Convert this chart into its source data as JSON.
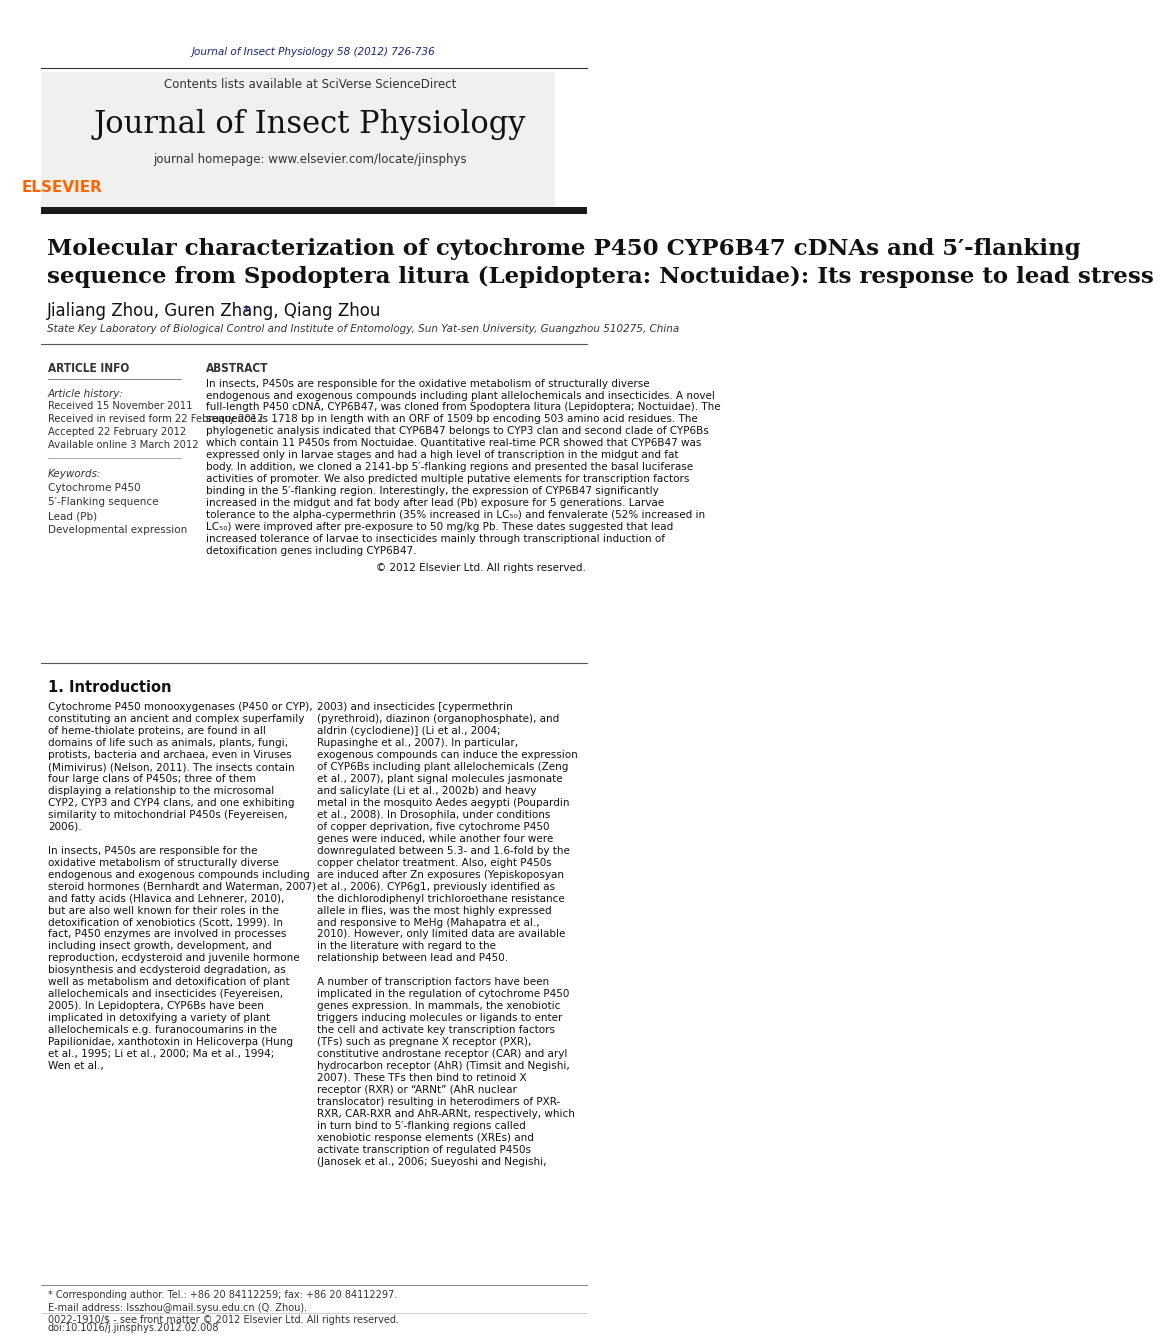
{
  "page_bg": "#ffffff",
  "header_citation": "Journal of Insect Physiology 58 (2012) 726-736",
  "header_citation_color": "#1a237e",
  "journal_name": "Journal of Insect Physiology",
  "journal_homepage": "journal homepage: www.elsevier.com/locate/jinsphys",
  "contents_line": "Contents lists available at SciVerse ScienceDirect",
  "article_title_line1": "Molecular characterization of cytochrome P450 CYP6B47 cDNAs and 5′-flanking",
  "article_title_line2": "sequence from Spodoptera litura (Lepidoptera: Noctuidae): Its response to lead stress",
  "authors": "Jialiang Zhou, Guren Zhang, Qiang Zhou*",
  "affiliation": "State Key Laboratory of Biological Control and Institute of Entomology, Sun Yat-sen University, Guangzhou 510275, China",
  "section_article_info": "ARTICLE INFO",
  "section_abstract": "ABSTRACT",
  "article_history_label": "Article history:",
  "article_history": [
    "Received 15 November 2011",
    "Received in revised form 22 February 2012",
    "Accepted 22 February 2012",
    "Available online 3 March 2012"
  ],
  "keywords_label": "Keywords:",
  "keywords": [
    "Cytochrome P450",
    "5′-Flanking sequence",
    "Lead (Pb)",
    "Developmental expression"
  ],
  "abstract_text": "In insects, P450s are responsible for the oxidative metabolism of structurally diverse endogenous and exogenous compounds including plant allelochemicals and insecticides. A novel full-length P450 cDNA, CYP6B47, was cloned from Spodoptera litura (Lepidoptera; Noctuidae). The sequence is 1718 bp in length with an ORF of 1509 bp encoding 503 amino acid residues. The phylogenetic analysis indicated that CYP6B47 belongs to CYP3 clan and second clade of CYP6Bs which contain 11 P450s from Noctuidae. Quantitative real-time PCR showed that CYP6B47 was expressed only in larvae stages and had a high level of transcription in the midgut and fat body. In addition, we cloned a 2141-bp 5′-flanking regions and presented the basal luciferase activities of promoter. We also predicted multiple putative elements for transcription factors binding in the 5′-flanking region. Interestingly, the expression of CYP6B47 significantly increased in the midgut and fat body after lead (Pb) exposure for 5 generations. Larvae tolerance to the alpha-cypermethrin (35% increased in LC₅₀) and fenvalerate (52% increased in LC₅₀) were improved after pre-exposure to 50 mg/kg Pb. These dates suggested that lead increased tolerance of larvae to insecticides mainly through transcriptional induction of detoxification genes including CYP6B47.\n© 2012 Elsevier Ltd. All rights reserved.",
  "intro_heading": "1. Introduction",
  "intro_col1": "Cytochrome P450 monooxygenases (P450 or CYP), constituting an ancient and complex superfamily of heme-thiolate proteins, are found in all domains of life such as animals, plants, fungi, protists, bacteria and archaea, even in Viruses (Mimivirus) (Nelson, 2011). The insects contain four large clans of P450s; three of them displaying a relationship to the microsomal CYP2, CYP3 and CYP4 clans, and one exhibiting similarity to mitochondrial P450s (Feyereisen, 2006).\n    In insects, P450s are responsible for the oxidative metabolism of structurally diverse endogenous and exogenous compounds including steroid hormones (Bernhardt and Waterman, 2007) and fatty acids (Hlavica and Lehnerer, 2010), but are also well known for their roles in the detoxification of xenobiotics (Scott, 1999). In fact, P450 enzymes are involved in processes including insect growth, development, and reproduction, ecdysteroid and juvenile hormone biosynthesis and ecdysteroid degradation, as well as metabolism and detoxification of plant allelochemicals and insecticides (Feyereisen, 2005). In Lepidoptera, CYP6Bs have been implicated in detoxifying a variety of plant allelochemicals e.g. furanocoumarins in the Papilionidae, xanthotoxin in Helicoverpa (Hung et al., 1995; Li et al., 2000; Ma et al., 1994; Wen et al.,",
  "intro_col2": "2003) and insecticides [cypermethrin (pyrethroid), diazinon (organophosphate), and aldrin (cyclodiene)] (Li et al., 2004; Rupasinghe et al., 2007). In particular, exogenous compounds can induce the expression of CYP6Bs including plant allelochemicals (Zeng et al., 2007), plant signal molecules jasmonate and salicylate (Li et al., 2002b) and heavy metal in the mosquito Aedes aegypti (Poupardin et al., 2008). In Drosophila, under conditions of copper deprivation, five cytochrome P450 genes were induced, while another four were downregulated between 5.3- and 1.6-fold by the copper chelator treatment. Also, eight P450s are induced after Zn exposures (Yepiskoposyan et al., 2006). CYP6g1, previously identified as the dichlorodiphenyl trichloroethane resistance allele in flies, was the most highly expressed and responsive to MeHg (Mahapatra et al., 2010). However, only limited data are available in the literature with regard to the relationship between lead and P450.\n    A number of transcription factors have been implicated in the regulation of cytochrome P450 genes expression. In mammals, the xenobiotic triggers inducing molecules or ligands to enter the cell and activate key transcription factors (TFs) such as pregnane X receptor (PXR), constitutive androstane receptor (CAR) and aryl hydrocarbon receptor (AhR) (Timsit and Negishi, 2007). These TFs then bind to retinoid X receptor (RXR) or “ARNt” (AhR nuclear translocator) resulting in heterodimers of PXR-RXR, CAR-RXR and AhR-ARNt, respectively, which in turn bind to 5′-flanking regions called xenobiotic response elements (XREs) and activate transcription of regulated P450s (Janosek et al., 2006; Sueyoshi and Negishi,",
  "footer_note": "* Corresponding author. Tel.: +86 20 84112259; fax: +86 20 84112297.",
  "footer_email": "E-mail address: lsszhou@mail.sysu.edu.cn (Q. Zhou).",
  "footer_issn": "0022-1910/$ - see front matter © 2012 Elsevier Ltd. All rights reserved.",
  "footer_doi": "doi:10.1016/j.jinsphys.2012.02.008"
}
